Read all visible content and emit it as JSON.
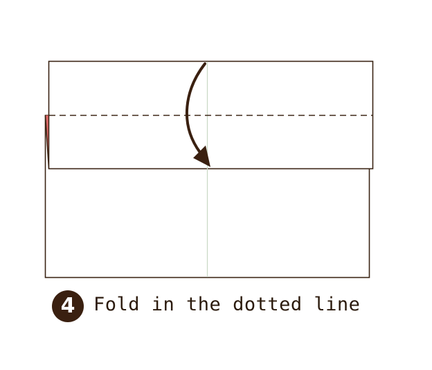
{
  "step": {
    "number": "4",
    "instruction": "Fold in the dotted line"
  },
  "colors": {
    "outline": "#3a2414",
    "center_crease": "#c8d8c4",
    "dotted_line": "#3a2414",
    "arrow": "#3a2010",
    "paper_back_edge": "#e06a6a",
    "badge": "#3a2010",
    "text": "#2b1a0c"
  },
  "icons": {
    "fold_arrow": "curved-down-arrow-icon",
    "step_marker": "number-circle-icon"
  }
}
